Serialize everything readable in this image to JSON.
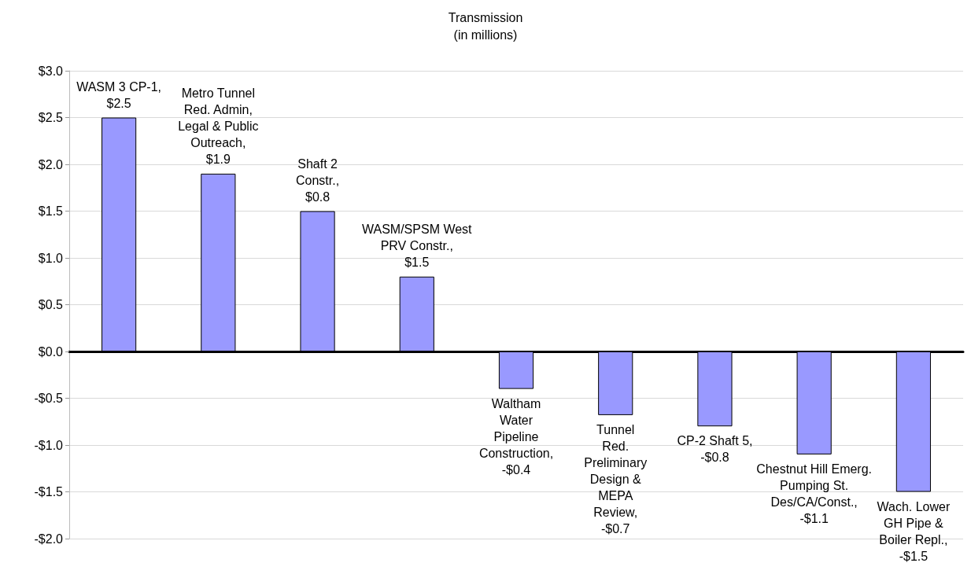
{
  "chart_data": {
    "type": "bar",
    "title": "Transmission\n(in millions)",
    "categories": [
      null,
      null,
      null,
      null,
      null,
      null,
      null,
      null,
      null
    ],
    "values": [
      2.5,
      1.9,
      1.5,
      0.8,
      -0.4,
      -0.68,
      -0.8,
      -1.1,
      -1.5
    ],
    "annotations": [
      "WASM 3 CP-1,\n$2.5",
      "Metro Tunnel\nRed. Admin,\nLegal & Public\nOutreach,\n$1.9",
      "Shaft 2\nConstr.,\n$0.8",
      "WASM/SPSM West\nPRV Constr.,\n$1.5",
      "Waltham\nWater\nPipeline\nConstruction,\n-$0.4",
      "Tunnel\nRed.\nPreliminary\nDesign &\nMEPA\nReview,\n-$0.7",
      "CP-2 Shaft 5,\n-$0.8",
      "Chestnut Hill Emerg.\nPumping St.\nDes/CA/Const.,\n-$1.1",
      "Wach. Lower\nGH Pipe &\nBoiler Repl.,\n-$1.5"
    ],
    "color": "#9999ff",
    "ylim": [
      -2.0,
      3.0
    ],
    "yticks": [
      {
        "value": -2.0,
        "label": "-$2.0"
      },
      {
        "value": -1.5,
        "label": "-$1.5"
      },
      {
        "value": -1.0,
        "label": "-$1.0"
      },
      {
        "value": -0.5,
        "label": "-$0.5"
      },
      {
        "value": 0.0,
        "label": "$0.0"
      },
      {
        "value": 0.5,
        "label": "$0.5"
      },
      {
        "value": 1.0,
        "label": "$1.0"
      },
      {
        "value": 1.5,
        "label": "$1.5"
      },
      {
        "value": 2.0,
        "label": "$2.0"
      },
      {
        "value": 2.5,
        "label": "$2.5"
      },
      {
        "value": 3.0,
        "label": "$3.0"
      }
    ],
    "grid": "y",
    "tick_labels": "y"
  }
}
